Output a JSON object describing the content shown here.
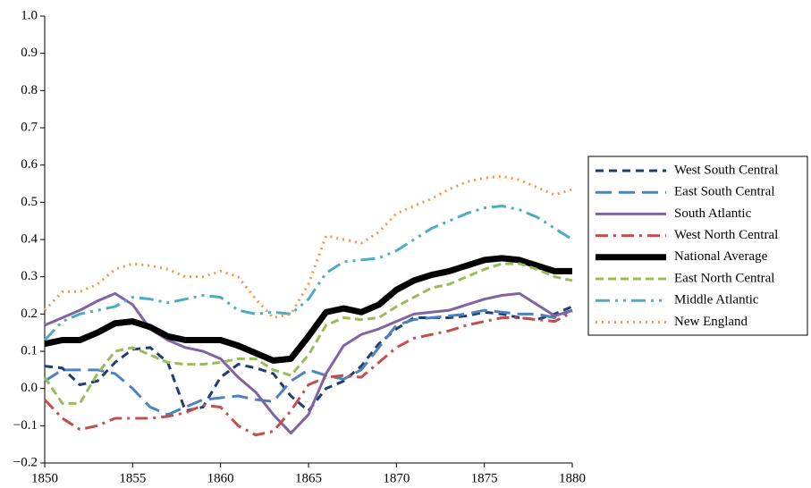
{
  "chart_data": {
    "type": "line",
    "x": [
      1850,
      1851,
      1852,
      1853,
      1854,
      1855,
      1856,
      1857,
      1858,
      1859,
      1860,
      1861,
      1862,
      1863,
      1864,
      1865,
      1866,
      1867,
      1868,
      1869,
      1870,
      1871,
      1872,
      1873,
      1874,
      1875,
      1876,
      1877,
      1878,
      1879,
      1880
    ],
    "xlim": [
      1850,
      1880
    ],
    "xticks": [
      1850,
      1855,
      1860,
      1865,
      1870,
      1875,
      1880
    ],
    "ylim": [
      -0.2,
      1.0
    ],
    "yticks": [
      {
        "value": -0.2,
        "label": "−0.2"
      },
      {
        "value": -0.1,
        "label": "−0.1"
      },
      {
        "value": 0,
        "label": "0.0"
      },
      {
        "value": 0.1,
        "label": "0.1"
      },
      {
        "value": 0.2,
        "label": "0.2"
      },
      {
        "value": 0.3,
        "label": "0.3"
      },
      {
        "value": 0.4,
        "label": "0.4"
      },
      {
        "value": 0.5,
        "label": "0.5"
      },
      {
        "value": 0.6,
        "label": "0.6"
      },
      {
        "value": 0.7,
        "label": "0.7"
      },
      {
        "value": 0.8,
        "label": "0.8"
      },
      {
        "value": 0.9,
        "label": "0.9"
      },
      {
        "value": 1.0,
        "label": "1.0"
      }
    ],
    "legend": "right",
    "series": [
      {
        "name": "West South Central",
        "color": "#1f3d6e",
        "dash": "9,6",
        "width": 3,
        "values": [
          0.06,
          0.055,
          0.01,
          0.02,
          0.07,
          0.105,
          0.11,
          0.07,
          -0.06,
          -0.05,
          0.03,
          0.065,
          0.055,
          0.04,
          -0.02,
          -0.06,
          0.0,
          0.02,
          0.06,
          0.12,
          0.16,
          0.19,
          0.19,
          0.19,
          0.195,
          0.205,
          0.2,
          0.19,
          0.185,
          0.2,
          0.22
        ]
      },
      {
        "name": "East South Central",
        "color": "#4f81bd",
        "dash": "18,8",
        "width": 3,
        "values": [
          0.02,
          0.05,
          0.05,
          0.05,
          0.04,
          0.0,
          -0.05,
          -0.07,
          -0.05,
          -0.03,
          -0.025,
          -0.02,
          -0.03,
          -0.035,
          0.02,
          0.05,
          0.035,
          0.025,
          0.05,
          0.11,
          0.17,
          0.185,
          0.19,
          0.195,
          0.2,
          0.21,
          0.205,
          0.2,
          0.2,
          0.19,
          0.21
        ]
      },
      {
        "name": "South Atlantic",
        "color": "#8064a2",
        "dash": "none",
        "width": 3,
        "values": [
          0.17,
          0.19,
          0.21,
          0.235,
          0.255,
          0.225,
          0.16,
          0.13,
          0.11,
          0.1,
          0.08,
          0.03,
          -0.01,
          -0.07,
          -0.12,
          -0.07,
          0.04,
          0.115,
          0.145,
          0.16,
          0.18,
          0.2,
          0.205,
          0.21,
          0.225,
          0.24,
          0.25,
          0.255,
          0.225,
          0.195,
          0.21
        ]
      },
      {
        "name": "West North Central",
        "color": "#c0504d",
        "dash": "14,6,3,6",
        "width": 3,
        "values": [
          -0.03,
          -0.08,
          -0.11,
          -0.1,
          -0.08,
          -0.08,
          -0.08,
          -0.075,
          -0.065,
          -0.045,
          -0.05,
          -0.1,
          -0.125,
          -0.115,
          -0.06,
          0.01,
          0.03,
          0.035,
          0.03,
          0.07,
          0.11,
          0.135,
          0.145,
          0.155,
          0.17,
          0.18,
          0.19,
          0.19,
          0.185,
          0.18,
          0.205
        ]
      },
      {
        "name": "National Average",
        "color": "#000000",
        "dash": "none",
        "width": 7,
        "values": [
          0.12,
          0.13,
          0.13,
          0.15,
          0.175,
          0.18,
          0.165,
          0.14,
          0.13,
          0.13,
          0.13,
          0.115,
          0.095,
          0.075,
          0.08,
          0.14,
          0.205,
          0.215,
          0.205,
          0.225,
          0.265,
          0.29,
          0.305,
          0.315,
          0.33,
          0.345,
          0.35,
          0.345,
          0.33,
          0.315,
          0.315
        ]
      },
      {
        "name": "East North Central",
        "color": "#9bbb59",
        "dash": "9,5",
        "width": 3,
        "values": [
          0.03,
          -0.04,
          -0.04,
          0.04,
          0.1,
          0.11,
          0.09,
          0.07,
          0.065,
          0.065,
          0.07,
          0.08,
          0.08,
          0.05,
          0.035,
          0.09,
          0.17,
          0.19,
          0.185,
          0.19,
          0.22,
          0.245,
          0.27,
          0.28,
          0.3,
          0.32,
          0.335,
          0.335,
          0.32,
          0.3,
          0.29
        ]
      },
      {
        "name": "Middle Atlantic",
        "color": "#4bacc6",
        "dash": "16,6,3,6,3,6",
        "width": 3,
        "values": [
          0.13,
          0.18,
          0.2,
          0.21,
          0.22,
          0.245,
          0.24,
          0.23,
          0.24,
          0.25,
          0.245,
          0.21,
          0.2,
          0.205,
          0.2,
          0.24,
          0.31,
          0.34,
          0.345,
          0.35,
          0.37,
          0.4,
          0.43,
          0.45,
          0.47,
          0.485,
          0.49,
          0.48,
          0.46,
          0.43,
          0.4
        ]
      },
      {
        "name": "New England",
        "color": "#f79646",
        "dash": "2,5",
        "width": 3,
        "values": [
          0.21,
          0.26,
          0.26,
          0.28,
          0.32,
          0.335,
          0.33,
          0.32,
          0.3,
          0.3,
          0.315,
          0.3,
          0.24,
          0.19,
          0.2,
          0.28,
          0.41,
          0.4,
          0.39,
          0.42,
          0.47,
          0.49,
          0.51,
          0.535,
          0.555,
          0.565,
          0.57,
          0.56,
          0.54,
          0.52,
          0.535
        ]
      }
    ]
  }
}
